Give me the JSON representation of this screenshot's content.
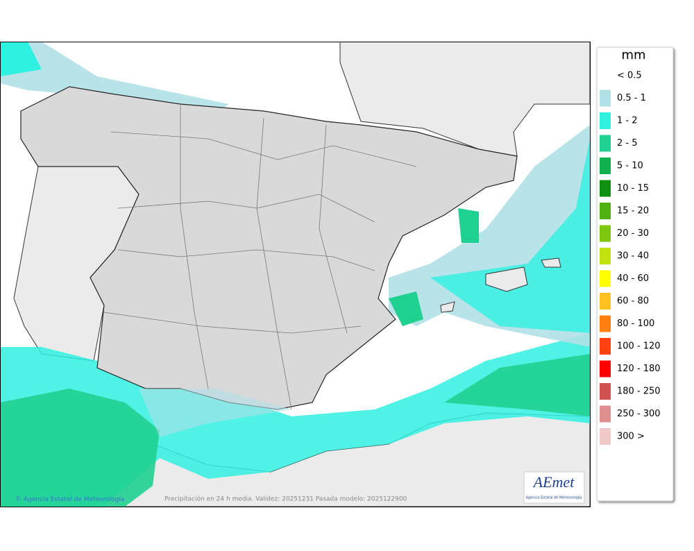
{
  "map": {
    "copyright": "Agencia Estatal de Meteorología",
    "caption": "Precipitación en 24 h media. Validez: 20251231 Pasada modelo: 2025122900"
  },
  "legend": {
    "title": "mm",
    "items": [
      {
        "label": "< 0.5"
      },
      {
        "label": "0.5 - 1",
        "color": "#b0e0e6"
      },
      {
        "label": "1 - 2",
        "color": "#30f0e0"
      },
      {
        "label": "2 - 5",
        "color": "#20d090"
      },
      {
        "label": "5 - 10",
        "color": "#10b050"
      },
      {
        "label": "10 - 15",
        "color": "#109010"
      },
      {
        "label": "15 - 20",
        "color": "#50b010"
      },
      {
        "label": "20 - 30",
        "color": "#80c810"
      },
      {
        "label": "30 - 40",
        "color": "#c0e010"
      },
      {
        "label": "40 - 60",
        "color": "#ffff00"
      },
      {
        "label": "60 - 80",
        "color": "#ffc020"
      },
      {
        "label": "80 - 100",
        "color": "#ff8010"
      },
      {
        "label": "100 - 120",
        "color": "#ff4010"
      },
      {
        "label": "120 - 180",
        "color": "#ff0000"
      },
      {
        "label": "180 - 250",
        "color": "#d05050"
      },
      {
        "label": "250 - 300",
        "color": "#e09090"
      },
      {
        "label": "300 >",
        "color": "#f0c8c8"
      }
    ]
  },
  "logo": {
    "text": "AEmet",
    "subtitle": "Agencia Estatal de Meteorología"
  }
}
